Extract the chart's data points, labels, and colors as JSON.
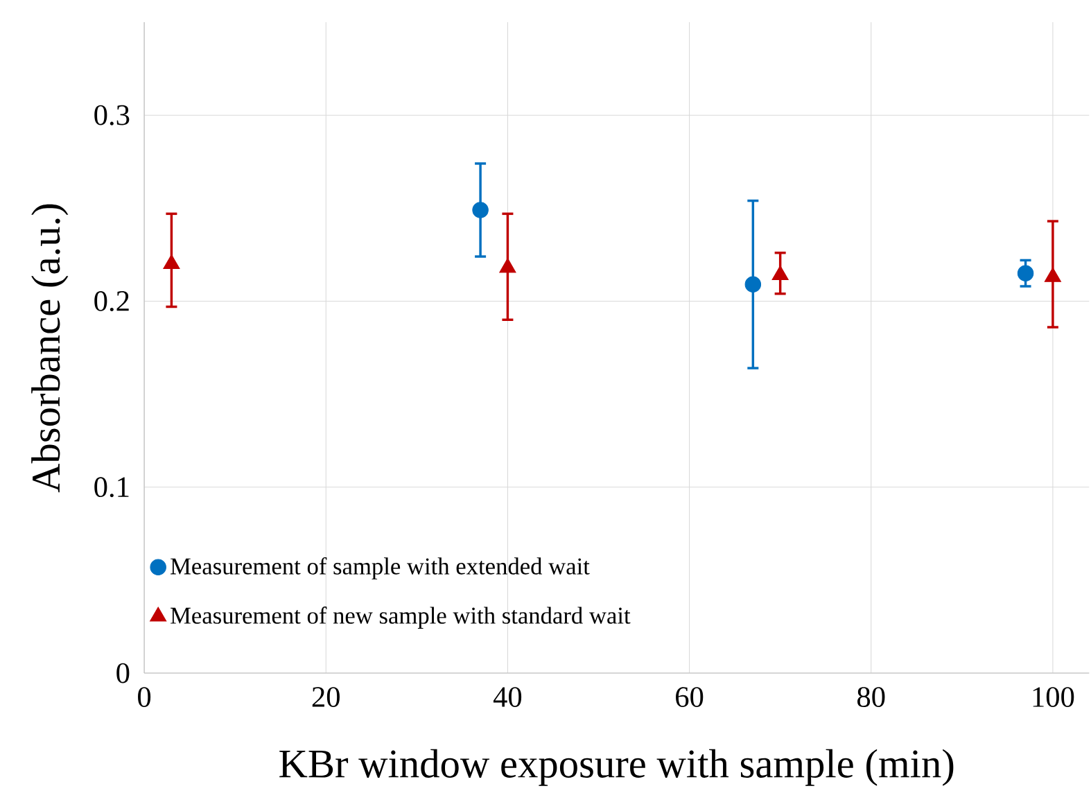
{
  "chart_data": {
    "type": "scatter",
    "xlabel": "KBr window exposure with sample (min)",
    "ylabel": "Absorbance (a.u.)",
    "xlim": [
      0,
      104
    ],
    "ylim": [
      0,
      0.35
    ],
    "xticks": [
      0,
      20,
      40,
      60,
      80,
      100
    ],
    "yticks": [
      0,
      0.1,
      0.2,
      0.3
    ],
    "grid": true,
    "legend": "bottom left",
    "series": [
      {
        "name": "Measurement of sample with extended wait",
        "color": "#0070c0",
        "marker": "circle",
        "x": [
          37,
          67,
          97
        ],
        "values": [
          0.249,
          0.209,
          0.215
        ],
        "errors": [
          [
            0.224,
            0.274
          ],
          [
            0.164,
            0.254
          ],
          [
            0.208,
            0.222
          ]
        ]
      },
      {
        "name": "Measurement of new sample with standard wait",
        "color": "#c00000",
        "marker": "triangle",
        "x": [
          3,
          40,
          70,
          100
        ],
        "values": [
          0.22,
          0.218,
          0.214,
          0.213
        ],
        "errors": [
          [
            0.197,
            0.247
          ],
          [
            0.19,
            0.247
          ],
          [
            0.204,
            0.226
          ],
          [
            0.186,
            0.243
          ]
        ]
      }
    ]
  }
}
